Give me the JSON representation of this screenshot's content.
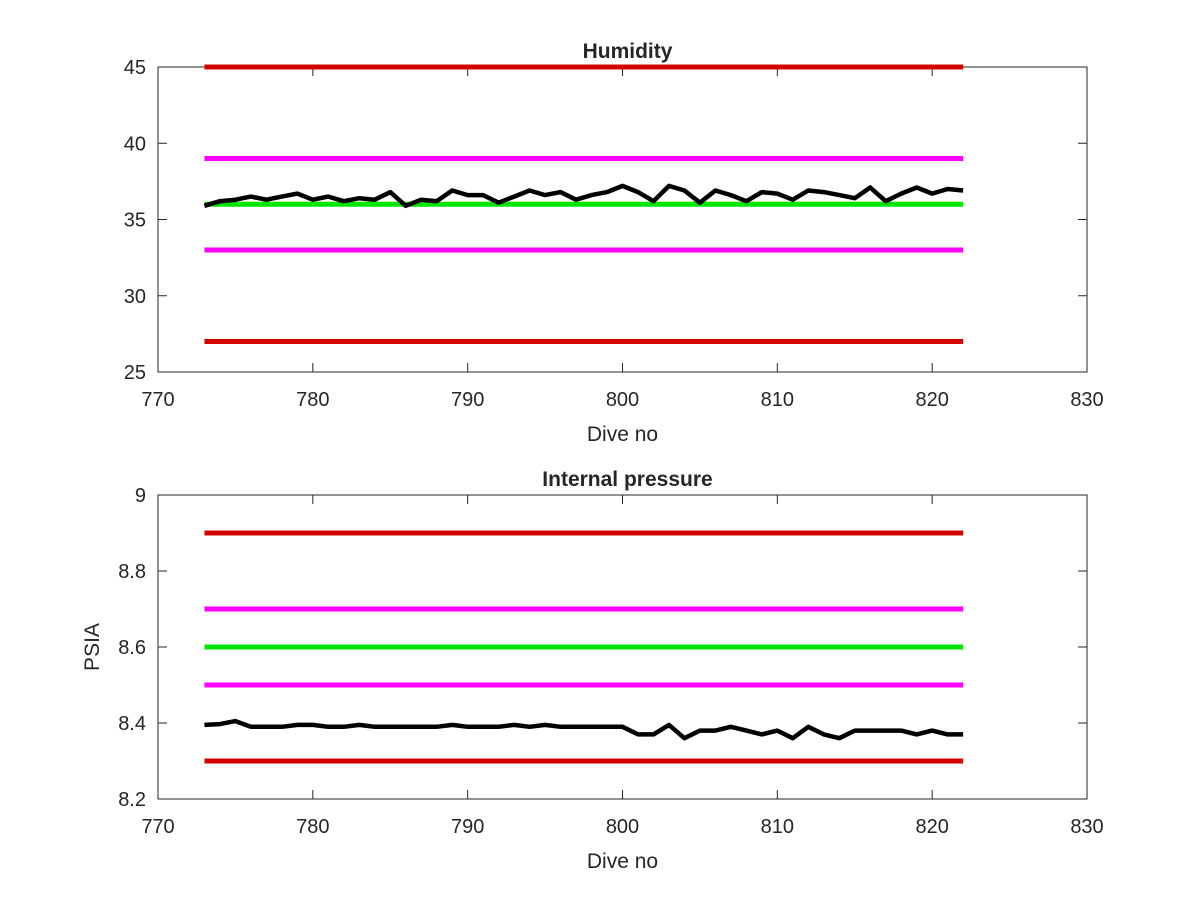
{
  "chart_data": [
    {
      "type": "line",
      "title": "Humidity",
      "xlabel": "Dive no",
      "ylabel": "",
      "xlim": [
        770,
        830
      ],
      "ylim": [
        25,
        45
      ],
      "xticks": [
        770,
        780,
        790,
        800,
        810,
        820,
        830
      ],
      "yticks": [
        25,
        30,
        35,
        40,
        45
      ],
      "grid": false,
      "reference_lines": [
        {
          "y": 45,
          "x_range": [
            773,
            822
          ],
          "color": "#d40000"
        },
        {
          "y": 39,
          "x_range": [
            773,
            822
          ],
          "color": "#ff00ff"
        },
        {
          "y": 36,
          "x_range": [
            773,
            822
          ],
          "color": "#00e600"
        },
        {
          "y": 33,
          "x_range": [
            773,
            822
          ],
          "color": "#ff00ff"
        },
        {
          "y": 27,
          "x_range": [
            773,
            822
          ],
          "color": "#d40000"
        }
      ],
      "series": [
        {
          "color": "#000000",
          "x": [
            773,
            774,
            775,
            776,
            777,
            778,
            779,
            780,
            781,
            782,
            783,
            784,
            785,
            786,
            787,
            788,
            789,
            790,
            791,
            792,
            793,
            794,
            795,
            796,
            797,
            798,
            799,
            800,
            801,
            802,
            803,
            804,
            805,
            806,
            807,
            808,
            809,
            810,
            811,
            812,
            813,
            814,
            815,
            816,
            817,
            818,
            819,
            820,
            821,
            822
          ],
          "values": [
            35.9,
            36.2,
            36.3,
            36.5,
            36.3,
            36.5,
            36.7,
            36.3,
            36.5,
            36.2,
            36.4,
            36.3,
            36.8,
            35.9,
            36.3,
            36.2,
            36.9,
            36.6,
            36.6,
            36.1,
            36.5,
            36.9,
            36.6,
            36.8,
            36.3,
            36.6,
            36.8,
            37.2,
            36.8,
            36.2,
            37.2,
            36.9,
            36.1,
            36.9,
            36.6,
            36.2,
            36.8,
            36.7,
            36.3,
            36.9,
            36.8,
            36.6,
            36.4,
            37.1,
            36.2,
            36.7,
            37.1,
            36.7,
            37.0,
            36.9
          ]
        }
      ]
    },
    {
      "type": "line",
      "title": "Internal pressure",
      "xlabel": "Dive no",
      "ylabel": "PSIA",
      "xlim": [
        770,
        830
      ],
      "ylim": [
        8.2,
        9
      ],
      "xticks": [
        770,
        780,
        790,
        800,
        810,
        820,
        830
      ],
      "yticks": [
        8.2,
        8.4,
        8.6,
        8.8,
        9
      ],
      "ytick_labels": [
        "8.2",
        "8.4",
        "8.6",
        "8.8",
        "9"
      ],
      "grid": false,
      "reference_lines": [
        {
          "y": 8.9,
          "x_range": [
            773,
            822
          ],
          "color": "#d40000"
        },
        {
          "y": 8.7,
          "x_range": [
            773,
            822
          ],
          "color": "#ff00ff"
        },
        {
          "y": 8.6,
          "x_range": [
            773,
            822
          ],
          "color": "#00e600"
        },
        {
          "y": 8.5,
          "x_range": [
            773,
            822
          ],
          "color": "#ff00ff"
        },
        {
          "y": 8.3,
          "x_range": [
            773,
            822
          ],
          "color": "#d40000"
        }
      ],
      "series": [
        {
          "color": "#000000",
          "x": [
            773,
            774,
            775,
            776,
            777,
            778,
            779,
            780,
            781,
            782,
            783,
            784,
            785,
            786,
            787,
            788,
            789,
            790,
            791,
            792,
            793,
            794,
            795,
            796,
            797,
            798,
            799,
            800,
            801,
            802,
            803,
            804,
            805,
            806,
            807,
            808,
            809,
            810,
            811,
            812,
            813,
            814,
            815,
            816,
            817,
            818,
            819,
            820,
            821,
            822
          ],
          "values": [
            8.395,
            8.397,
            8.405,
            8.39,
            8.39,
            8.39,
            8.395,
            8.395,
            8.39,
            8.39,
            8.395,
            8.39,
            8.39,
            8.39,
            8.39,
            8.39,
            8.395,
            8.39,
            8.39,
            8.39,
            8.395,
            8.39,
            8.395,
            8.39,
            8.39,
            8.39,
            8.39,
            8.39,
            8.37,
            8.37,
            8.395,
            8.36,
            8.38,
            8.38,
            8.39,
            8.38,
            8.37,
            8.38,
            8.36,
            8.39,
            8.37,
            8.36,
            8.38,
            8.38,
            8.38,
            8.38,
            8.37,
            8.38,
            8.37,
            8.37
          ]
        }
      ]
    }
  ]
}
